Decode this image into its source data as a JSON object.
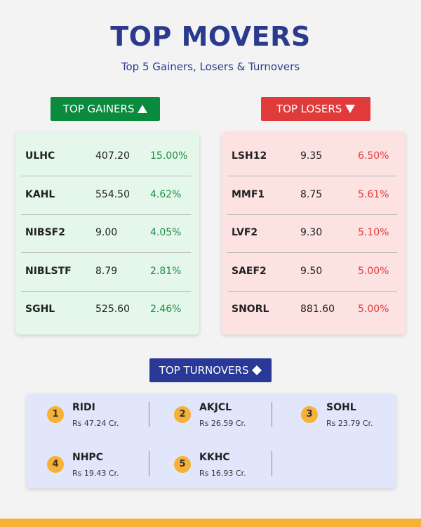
{
  "header": {
    "title": "TOP MOVERS",
    "subtitle": "Top 5 Gainers, Losers & Turnovers"
  },
  "gainers": {
    "heading": "TOP GAINERS",
    "rows": [
      [
        "ULHC",
        "407.20",
        "15.00%"
      ],
      [
        "KAHL",
        "554.50",
        "4.62%"
      ],
      [
        "NIBSF2",
        "9.00",
        "4.05%"
      ],
      [
        "NIBLSTF",
        "8.79",
        "2.81%"
      ],
      [
        "SGHL",
        "525.60",
        "2.46%"
      ]
    ]
  },
  "losers": {
    "heading": "TOP LOSERS",
    "rows": [
      [
        "LSH12",
        "9.35",
        "6.50%"
      ],
      [
        "MMF1",
        "8.75",
        "5.61%"
      ],
      [
        "LVF2",
        "9.30",
        "5.10%"
      ],
      [
        "SAEF2",
        "9.50",
        "5.00%"
      ],
      [
        "SNORL",
        "881.60",
        "5.00%"
      ]
    ]
  },
  "turnovers": {
    "heading": "TOP TURNOVERS",
    "items": [
      {
        "rank": "1",
        "symbol": "RIDI",
        "amount": "Rs 47.24 Cr."
      },
      {
        "rank": "2",
        "symbol": "AKJCL",
        "amount": "Rs 26.59 Cr."
      },
      {
        "rank": "3",
        "symbol": "SOHL",
        "amount": "Rs 23.79 Cr."
      },
      {
        "rank": "4",
        "symbol": "NHPC",
        "amount": "Rs 19.43 Cr."
      },
      {
        "rank": "5",
        "symbol": "KKHC",
        "amount": "Rs 16.93 Cr."
      }
    ]
  }
}
